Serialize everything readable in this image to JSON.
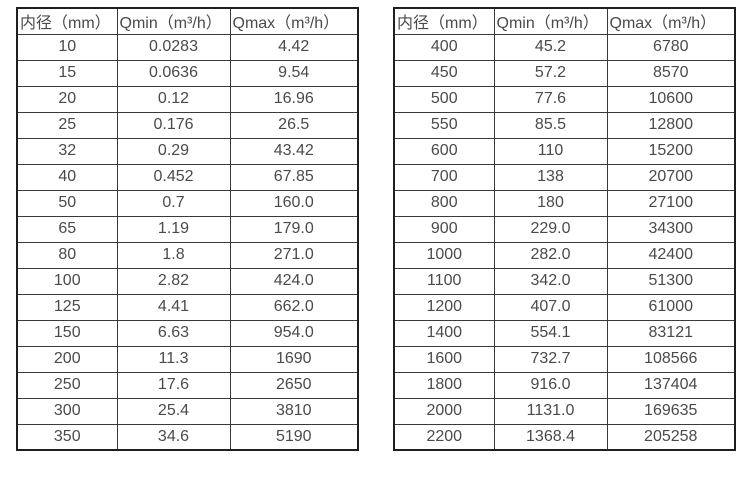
{
  "colors": {
    "outer_border": "#1f1f1f",
    "inner_border": "#3a3a3a",
    "text": "#4a4a4a",
    "background": "#ffffff"
  },
  "columns": [
    "内径（mm）",
    "Qmin（m³/h）",
    "Qmax（m³/h）"
  ],
  "left_table": {
    "rows": [
      [
        "10",
        "0.0283",
        "4.42"
      ],
      [
        "15",
        "0.0636",
        "9.54"
      ],
      [
        "20",
        "0.12",
        "16.96"
      ],
      [
        "25",
        "0.176",
        "26.5"
      ],
      [
        "32",
        "0.29",
        "43.42"
      ],
      [
        "40",
        "0.452",
        "67.85"
      ],
      [
        "50",
        "0.7",
        "160.0"
      ],
      [
        "65",
        "1.19",
        "179.0"
      ],
      [
        "80",
        "1.8",
        "271.0"
      ],
      [
        "100",
        "2.82",
        "424.0"
      ],
      [
        "125",
        "4.41",
        "662.0"
      ],
      [
        "150",
        "6.63",
        "954.0"
      ],
      [
        "200",
        "11.3",
        "1690"
      ],
      [
        "250",
        "17.6",
        "2650"
      ],
      [
        "300",
        "25.4",
        "3810"
      ],
      [
        "350",
        "34.6",
        "5190"
      ]
    ]
  },
  "right_table": {
    "rows": [
      [
        "400",
        "45.2",
        "6780"
      ],
      [
        "450",
        "57.2",
        "8570"
      ],
      [
        "500",
        "77.6",
        "10600"
      ],
      [
        "550",
        "85.5",
        "12800"
      ],
      [
        "600",
        "110",
        "15200"
      ],
      [
        "700",
        "138",
        "20700"
      ],
      [
        "800",
        "180",
        "27100"
      ],
      [
        "900",
        "229.0",
        "34300"
      ],
      [
        "1000",
        "282.0",
        "42400"
      ],
      [
        "1100",
        "342.0",
        "51300"
      ],
      [
        "1200",
        "407.0",
        "61000"
      ],
      [
        "1400",
        "554.1",
        "83121"
      ],
      [
        "1600",
        "732.7",
        "108566"
      ],
      [
        "1800",
        "916.0",
        "137404"
      ],
      [
        "2000",
        "1131.0",
        "169635"
      ],
      [
        "2200",
        "1368.4",
        "205258"
      ]
    ]
  }
}
